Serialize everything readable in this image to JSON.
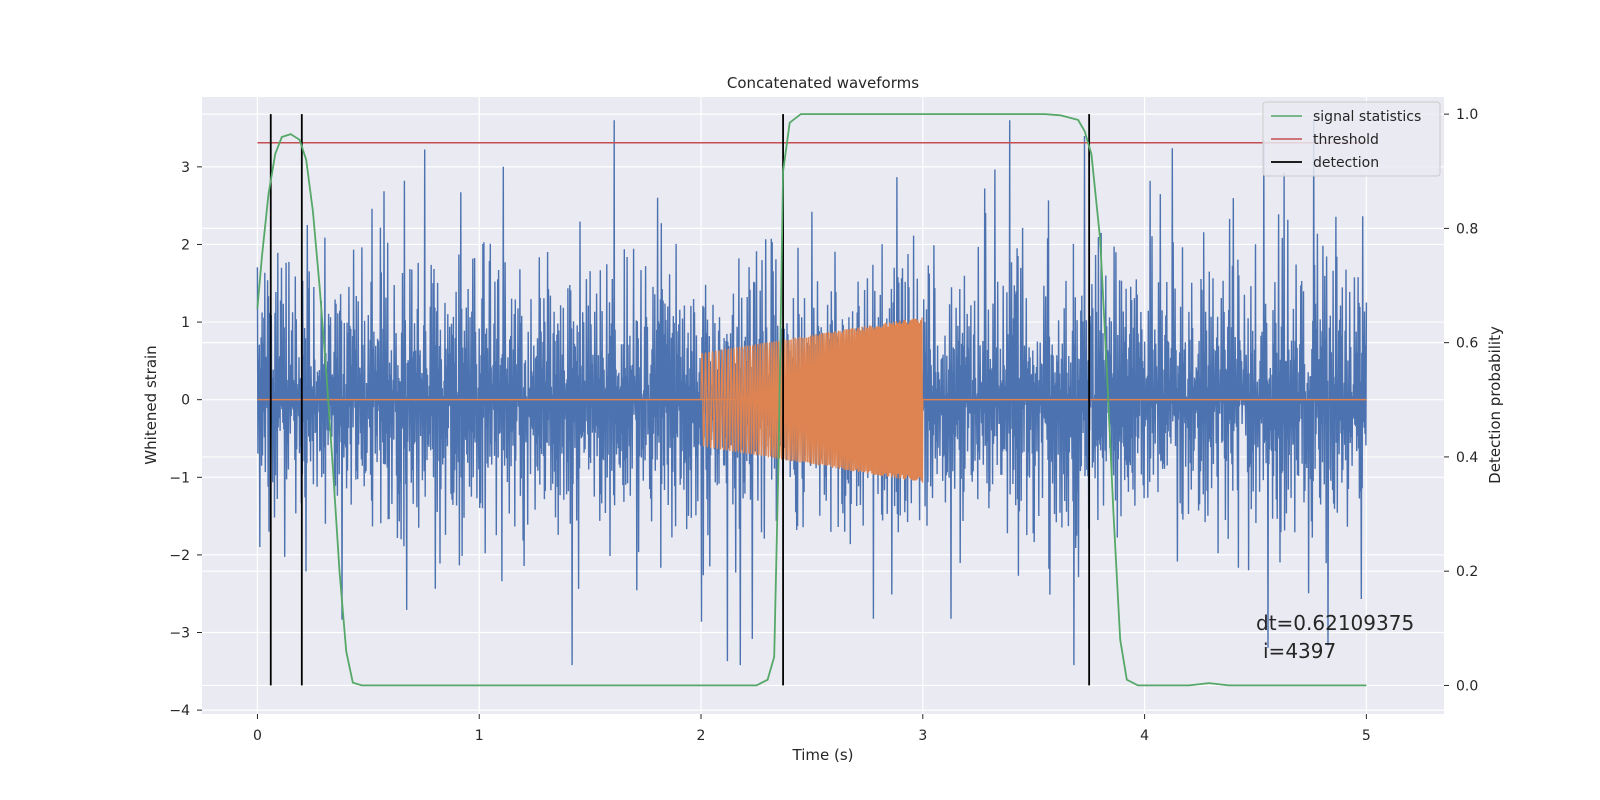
{
  "chart_data": {
    "type": "line",
    "title": "Concatenated waveforms",
    "xlabel": "Time (s)",
    "ylabel": "Whitened strain",
    "y2label": "Detection probability",
    "xlim": [
      -0.25,
      5.35
    ],
    "ylim": [
      -4.05,
      3.9
    ],
    "y2lim": [
      -0.05,
      1.03
    ],
    "xticks": [
      0,
      1,
      2,
      3,
      4,
      5
    ],
    "yticks": [
      -4,
      -3,
      -2,
      -1,
      0,
      1,
      2,
      3
    ],
    "y2ticks": [
      0.0,
      0.2,
      0.4,
      0.6,
      0.8,
      1.0
    ],
    "grid": true,
    "legend_position": "top-right",
    "legend": [
      {
        "label": "signal statistics",
        "color": "#55a868"
      },
      {
        "label": "threshold",
        "color": "#c44e52"
      },
      {
        "label": "detection",
        "color": "#000000"
      }
    ],
    "series": [
      {
        "description": "noise",
        "color": "#4c72b0",
        "x_range": [
          0,
          5
        ],
        "envelope": [
          -3.6,
          3.6
        ]
      },
      {
        "description": "injected chirp",
        "color": "#dd8452",
        "x_range": [
          2,
          3
        ],
        "amplitude_start": 0.6,
        "amplitude_end": 1.07
      },
      {
        "name": "signal statistics",
        "color": "#55a868",
        "axis": "right",
        "points": [
          [
            0.0,
            0.66
          ],
          [
            0.02,
            0.75
          ],
          [
            0.05,
            0.86
          ],
          [
            0.08,
            0.93
          ],
          [
            0.11,
            0.96
          ],
          [
            0.15,
            0.965
          ],
          [
            0.19,
            0.955
          ],
          [
            0.22,
            0.92
          ],
          [
            0.25,
            0.83
          ],
          [
            0.28,
            0.7
          ],
          [
            0.31,
            0.55
          ],
          [
            0.34,
            0.38
          ],
          [
            0.37,
            0.2
          ],
          [
            0.4,
            0.06
          ],
          [
            0.43,
            0.005
          ],
          [
            0.47,
            0.0
          ],
          [
            1.0,
            0.0
          ],
          [
            2.0,
            0.0
          ],
          [
            2.25,
            0.0
          ],
          [
            2.3,
            0.01
          ],
          [
            2.33,
            0.05
          ],
          [
            2.35,
            0.4
          ],
          [
            2.37,
            0.9
          ],
          [
            2.4,
            0.985
          ],
          [
            2.45,
            1.0
          ],
          [
            3.0,
            1.0
          ],
          [
            3.55,
            1.0
          ],
          [
            3.62,
            0.998
          ],
          [
            3.7,
            0.99
          ],
          [
            3.73,
            0.97
          ],
          [
            3.76,
            0.93
          ],
          [
            3.8,
            0.78
          ],
          [
            3.83,
            0.55
          ],
          [
            3.86,
            0.3
          ],
          [
            3.89,
            0.08
          ],
          [
            3.92,
            0.01
          ],
          [
            3.97,
            0.0
          ],
          [
            4.2,
            0.0
          ],
          [
            4.29,
            0.004
          ],
          [
            4.38,
            0.0
          ],
          [
            5.0,
            0.0
          ]
        ]
      },
      {
        "name": "threshold",
        "color": "#c44e52",
        "axis": "right",
        "y": 0.95,
        "x_range": [
          0,
          5
        ]
      }
    ],
    "detections": [
      0.06,
      0.2,
      2.37,
      3.75
    ],
    "annotation": [
      "dt=0.62109375",
      "i=4397"
    ]
  }
}
